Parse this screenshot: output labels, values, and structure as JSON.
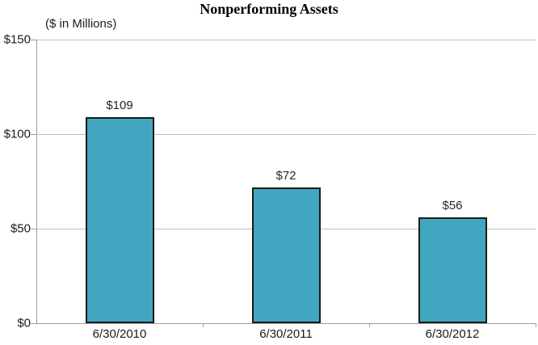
{
  "chart_data": {
    "type": "bar",
    "title": "Nonperforming Assets",
    "subtitle": "($ in Millions)",
    "categories": [
      "6/30/2010",
      "6/30/2011",
      "6/30/2012"
    ],
    "values": [
      109,
      72,
      56
    ],
    "value_labels": [
      "$109",
      "$72",
      "$56"
    ],
    "xlabel": "",
    "ylabel": "",
    "ylim": [
      0,
      150
    ],
    "yticks": [
      0,
      50,
      100,
      150
    ],
    "ytick_labels": [
      "$0",
      "$50",
      "$100",
      "$150"
    ],
    "grid": true,
    "legend": false,
    "colors": {
      "bar_fill": "#41A7C0",
      "bar_border": "#1A1A1A",
      "gridline": "#BFBFBF",
      "axis": "#9C9C9C",
      "text": "#1A1A1A"
    }
  }
}
